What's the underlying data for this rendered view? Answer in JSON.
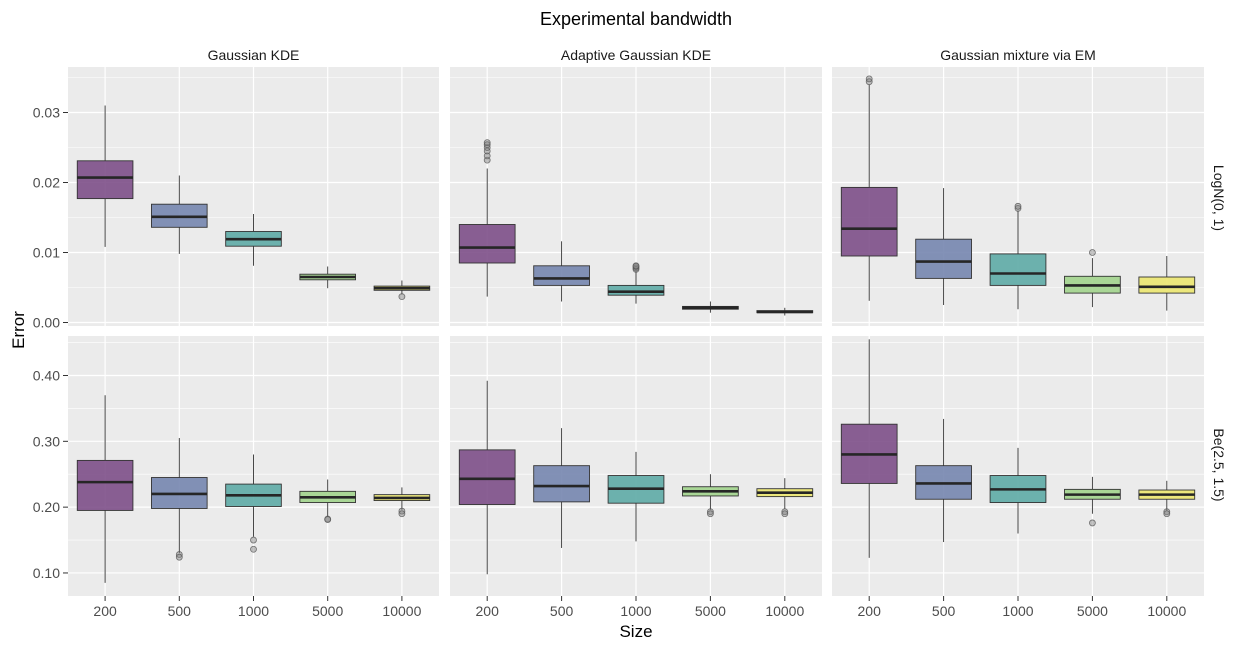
{
  "chart_data": {
    "type": "boxplot",
    "title": "Experimental bandwidth",
    "xlabel": "Size",
    "ylabel": "Error",
    "categories": [
      "200",
      "500",
      "1000",
      "5000",
      "10000"
    ],
    "columns": [
      "Gaussian KDE",
      "Adaptive Gaussian KDE",
      "Gaussian mixture via EM"
    ],
    "rows": [
      "LogN(0, 1)",
      "Be(2.5, 1.5)"
    ],
    "fill_colors": [
      "#7a4a85",
      "#7283ad",
      "#5aa8a4",
      "#9fd38a",
      "#ece66c"
    ],
    "panel_bg": "#ebebeb",
    "grid_color": "#ffffff",
    "y_axes": [
      {
        "row": "LogN(0, 1)",
        "range": [
          -0.0005,
          0.0365
        ],
        "ticks": [
          0.0,
          0.01,
          0.02,
          0.03
        ],
        "tick_labels": [
          "0.00",
          "0.01",
          "0.02",
          "0.03"
        ]
      },
      {
        "row": "Be(2.5, 1.5)",
        "range": [
          0.065,
          0.46
        ],
        "ticks": [
          0.1,
          0.2,
          0.3,
          0.4
        ],
        "tick_labels": [
          "0.10",
          "0.20",
          "0.30",
          "0.40"
        ]
      }
    ],
    "panels": [
      {
        "column": "Gaussian KDE",
        "row": "LogN(0, 1)",
        "boxes": [
          {
            "category": "200",
            "q1": 0.0177,
            "median": 0.0207,
            "q3": 0.0231,
            "whisker_low": 0.0108,
            "whisker_high": 0.031,
            "outliers": []
          },
          {
            "category": "500",
            "q1": 0.0136,
            "median": 0.0151,
            "q3": 0.0169,
            "whisker_low": 0.0098,
            "whisker_high": 0.021,
            "outliers": []
          },
          {
            "category": "1000",
            "q1": 0.0109,
            "median": 0.0119,
            "q3": 0.013,
            "whisker_low": 0.0081,
            "whisker_high": 0.0155,
            "outliers": []
          },
          {
            "category": "5000",
            "q1": 0.0061,
            "median": 0.0065,
            "q3": 0.0069,
            "whisker_low": 0.0049,
            "whisker_high": 0.008,
            "outliers": []
          },
          {
            "category": "10000",
            "q1": 0.0046,
            "median": 0.0049,
            "q3": 0.0052,
            "whisker_low": 0.004,
            "whisker_high": 0.006,
            "outliers": [
              0.0037
            ]
          }
        ]
      },
      {
        "column": "Adaptive Gaussian KDE",
        "row": "LogN(0, 1)",
        "boxes": [
          {
            "category": "200",
            "q1": 0.0085,
            "median": 0.0107,
            "q3": 0.014,
            "whisker_low": 0.0037,
            "whisker_high": 0.022,
            "outliers": [
              0.0232,
              0.0238,
              0.0245,
              0.025,
              0.0254,
              0.0257
            ]
          },
          {
            "category": "500",
            "q1": 0.0053,
            "median": 0.0063,
            "q3": 0.0081,
            "whisker_low": 0.003,
            "whisker_high": 0.0116,
            "outliers": []
          },
          {
            "category": "1000",
            "q1": 0.0039,
            "median": 0.0044,
            "q3": 0.0053,
            "whisker_low": 0.0027,
            "whisker_high": 0.0074,
            "outliers": [
              0.0076,
              0.0078,
              0.008,
              0.0081
            ]
          },
          {
            "category": "5000",
            "q1": 0.0019,
            "median": 0.0021,
            "q3": 0.0023,
            "whisker_low": 0.0014,
            "whisker_high": 0.003,
            "outliers": []
          },
          {
            "category": "10000",
            "q1": 0.0014,
            "median": 0.0015,
            "q3": 0.0017,
            "whisker_low": 0.001,
            "whisker_high": 0.0021,
            "outliers": []
          }
        ]
      },
      {
        "column": "Gaussian mixture via EM",
        "row": "LogN(0, 1)",
        "boxes": [
          {
            "category": "200",
            "q1": 0.0095,
            "median": 0.0134,
            "q3": 0.0193,
            "whisker_low": 0.0031,
            "whisker_high": 0.034,
            "outliers": [
              0.0344,
              0.0348
            ]
          },
          {
            "category": "500",
            "q1": 0.0063,
            "median": 0.0087,
            "q3": 0.0119,
            "whisker_low": 0.0025,
            "whisker_high": 0.0192,
            "outliers": []
          },
          {
            "category": "1000",
            "q1": 0.0053,
            "median": 0.007,
            "q3": 0.0098,
            "whisker_low": 0.0019,
            "whisker_high": 0.016,
            "outliers": [
              0.0163,
              0.0166
            ]
          },
          {
            "category": "5000",
            "q1": 0.0042,
            "median": 0.0053,
            "q3": 0.0066,
            "whisker_low": 0.0022,
            "whisker_high": 0.0092,
            "outliers": [
              0.01
            ]
          },
          {
            "category": "10000",
            "q1": 0.0042,
            "median": 0.0051,
            "q3": 0.0065,
            "whisker_low": 0.0017,
            "whisker_high": 0.0095,
            "outliers": []
          }
        ]
      },
      {
        "column": "Gaussian KDE",
        "row": "Be(2.5, 1.5)",
        "boxes": [
          {
            "category": "200",
            "q1": 0.195,
            "median": 0.238,
            "q3": 0.271,
            "whisker_low": 0.085,
            "whisker_high": 0.37,
            "outliers": []
          },
          {
            "category": "500",
            "q1": 0.198,
            "median": 0.22,
            "q3": 0.245,
            "whisker_low": 0.13,
            "whisker_high": 0.305,
            "outliers": [
              0.128,
              0.124
            ]
          },
          {
            "category": "1000",
            "q1": 0.201,
            "median": 0.218,
            "q3": 0.235,
            "whisker_low": 0.155,
            "whisker_high": 0.28,
            "outliers": [
              0.15,
              0.136
            ]
          },
          {
            "category": "5000",
            "q1": 0.207,
            "median": 0.215,
            "q3": 0.224,
            "whisker_low": 0.185,
            "whisker_high": 0.242,
            "outliers": [
              0.182,
              0.181
            ]
          },
          {
            "category": "10000",
            "q1": 0.21,
            "median": 0.214,
            "q3": 0.219,
            "whisker_low": 0.196,
            "whisker_high": 0.23,
            "outliers": [
              0.194,
              0.19
            ]
          }
        ]
      },
      {
        "column": "Adaptive Gaussian KDE",
        "row": "Be(2.5, 1.5)",
        "boxes": [
          {
            "category": "200",
            "q1": 0.204,
            "median": 0.243,
            "q3": 0.287,
            "whisker_low": 0.098,
            "whisker_high": 0.392,
            "outliers": []
          },
          {
            "category": "500",
            "q1": 0.208,
            "median": 0.232,
            "q3": 0.263,
            "whisker_low": 0.138,
            "whisker_high": 0.32,
            "outliers": []
          },
          {
            "category": "1000",
            "q1": 0.206,
            "median": 0.228,
            "q3": 0.248,
            "whisker_low": 0.148,
            "whisker_high": 0.284,
            "outliers": []
          },
          {
            "category": "5000",
            "q1": 0.217,
            "median": 0.224,
            "q3": 0.231,
            "whisker_low": 0.196,
            "whisker_high": 0.25,
            "outliers": [
              0.193,
              0.19
            ]
          },
          {
            "category": "10000",
            "q1": 0.216,
            "median": 0.222,
            "q3": 0.228,
            "whisker_low": 0.197,
            "whisker_high": 0.244,
            "outliers": [
              0.193,
              0.19
            ]
          }
        ]
      },
      {
        "column": "Gaussian mixture via EM",
        "row": "Be(2.5, 1.5)",
        "boxes": [
          {
            "category": "200",
            "q1": 0.236,
            "median": 0.28,
            "q3": 0.326,
            "whisker_low": 0.123,
            "whisker_high": 0.455,
            "outliers": []
          },
          {
            "category": "500",
            "q1": 0.212,
            "median": 0.236,
            "q3": 0.263,
            "whisker_low": 0.147,
            "whisker_high": 0.334,
            "outliers": []
          },
          {
            "category": "1000",
            "q1": 0.207,
            "median": 0.227,
            "q3": 0.248,
            "whisker_low": 0.16,
            "whisker_high": 0.29,
            "outliers": []
          },
          {
            "category": "5000",
            "q1": 0.212,
            "median": 0.219,
            "q3": 0.227,
            "whisker_low": 0.19,
            "whisker_high": 0.246,
            "outliers": [
              0.176
            ]
          },
          {
            "category": "10000",
            "q1": 0.212,
            "median": 0.219,
            "q3": 0.226,
            "whisker_low": 0.195,
            "whisker_high": 0.24,
            "outliers": [
              0.193,
              0.19
            ]
          }
        ]
      }
    ]
  }
}
